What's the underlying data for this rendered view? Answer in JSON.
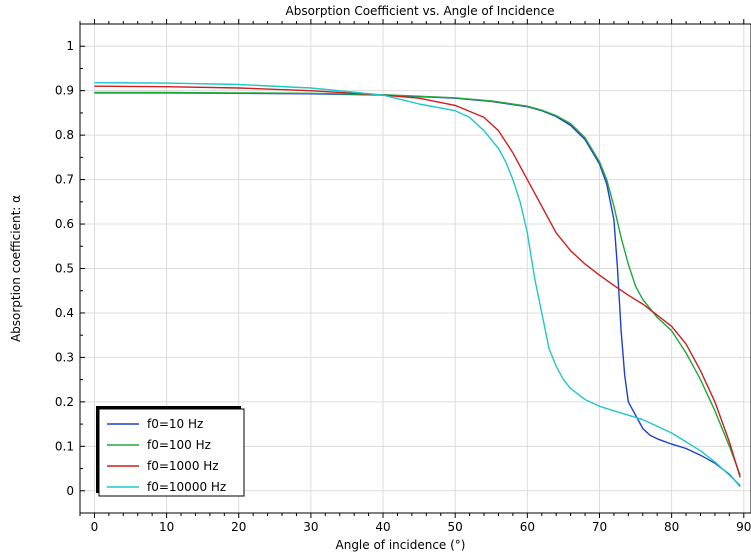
{
  "chart_data": {
    "type": "line",
    "title": "Absorption Coefficient vs. Angle of Incidence",
    "xlabel": "Angle of incidence (°)",
    "ylabel": "Absorption coefficient: α",
    "xlim": [
      -2,
      91
    ],
    "ylim": [
      -0.05,
      1.05
    ],
    "xticks": [
      0,
      10,
      20,
      30,
      40,
      50,
      60,
      70,
      80,
      90
    ],
    "yticks": [
      0,
      0.1,
      0.2,
      0.3,
      0.4,
      0.5,
      0.6,
      0.7,
      0.8,
      0.9,
      1
    ],
    "xtick_labels": [
      "0",
      "10",
      "20",
      "30",
      "40",
      "50",
      "60",
      "70",
      "80",
      "90"
    ],
    "ytick_labels": [
      "0",
      "0.1",
      "0.2",
      "0.3",
      "0.4",
      "0.5",
      "0.6",
      "0.7",
      "0.8",
      "0.9",
      "1"
    ],
    "grid": true,
    "legend_position": "bottom-left",
    "series": [
      {
        "name": "f0=10 Hz",
        "color": "#1f3fd0",
        "x": [
          0,
          10,
          20,
          30,
          40,
          50,
          55,
          60,
          62,
          64,
          66,
          68,
          70,
          71,
          72,
          72.5,
          73,
          73.5,
          74,
          75,
          76,
          77,
          78,
          80,
          82,
          84,
          86,
          88,
          89.5
        ],
        "y": [
          0.895,
          0.895,
          0.894,
          0.893,
          0.89,
          0.883,
          0.876,
          0.864,
          0.855,
          0.842,
          0.822,
          0.79,
          0.735,
          0.69,
          0.61,
          0.5,
          0.36,
          0.26,
          0.2,
          0.17,
          0.14,
          0.125,
          0.117,
          0.105,
          0.095,
          0.08,
          0.062,
          0.037,
          0.01
        ]
      },
      {
        "name": "f0=100 Hz",
        "color": "#1fa83c",
        "x": [
          0,
          10,
          20,
          30,
          40,
          50,
          55,
          60,
          62,
          64,
          66,
          68,
          70,
          71,
          72,
          73,
          74,
          75,
          76,
          77,
          78,
          80,
          82,
          84,
          86,
          88,
          89.5
        ],
        "y": [
          0.896,
          0.896,
          0.895,
          0.894,
          0.891,
          0.884,
          0.877,
          0.865,
          0.856,
          0.844,
          0.826,
          0.794,
          0.74,
          0.7,
          0.64,
          0.57,
          0.51,
          0.46,
          0.43,
          0.41,
          0.39,
          0.36,
          0.31,
          0.25,
          0.18,
          0.1,
          0.035
        ]
      },
      {
        "name": "f0=1000 Hz",
        "color": "#cc1f1f",
        "x": [
          0,
          10,
          20,
          30,
          40,
          45,
          50,
          54,
          56,
          58,
          60,
          62,
          64,
          66,
          68,
          70,
          72,
          74,
          76,
          78,
          80,
          82,
          84,
          86,
          88,
          89.5
        ],
        "y": [
          0.91,
          0.909,
          0.906,
          0.9,
          0.89,
          0.883,
          0.867,
          0.84,
          0.81,
          0.76,
          0.7,
          0.64,
          0.58,
          0.54,
          0.51,
          0.485,
          0.462,
          0.44,
          0.42,
          0.395,
          0.37,
          0.33,
          0.27,
          0.2,
          0.11,
          0.03
        ]
      },
      {
        "name": "f0=10000 Hz",
        "color": "#1fc8c8",
        "x": [
          0,
          10,
          20,
          30,
          40,
          45,
          50,
          52,
          54,
          56,
          57,
          58,
          59,
          60,
          61,
          62,
          63,
          64,
          65,
          66,
          68,
          70,
          72,
          74,
          76,
          78,
          80,
          82,
          84,
          86,
          88,
          89.5
        ],
        "y": [
          0.918,
          0.917,
          0.914,
          0.906,
          0.89,
          0.87,
          0.855,
          0.84,
          0.81,
          0.77,
          0.74,
          0.7,
          0.65,
          0.58,
          0.48,
          0.4,
          0.32,
          0.28,
          0.25,
          0.23,
          0.205,
          0.19,
          0.18,
          0.17,
          0.16,
          0.145,
          0.13,
          0.11,
          0.09,
          0.065,
          0.035,
          0.012
        ]
      }
    ]
  }
}
